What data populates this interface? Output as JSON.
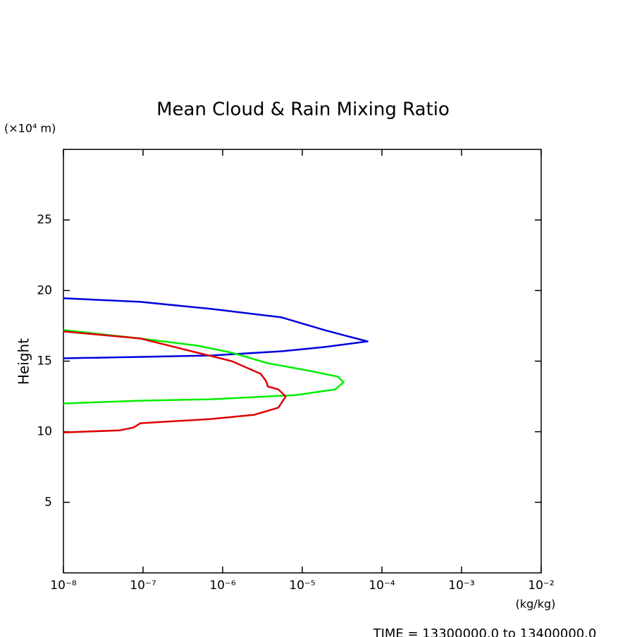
{
  "chart_data": {
    "type": "line",
    "title": "Mean Cloud & Rain Mixing Ratio",
    "xlabel": "(kg/kg)",
    "ylabel": "Height",
    "yunit": "(×10⁴ m)",
    "footer": "TIME = 13300000.0 to 13400000.0",
    "xscale": "log",
    "xlim": [
      1e-08,
      0.01
    ],
    "ylim": [
      0,
      30
    ],
    "xticks": [
      {
        "value": 1e-08,
        "label": "10⁻⁸"
      },
      {
        "value": 1e-07,
        "label": "10⁻⁷"
      },
      {
        "value": 1e-06,
        "label": "10⁻⁶"
      },
      {
        "value": 1e-05,
        "label": "10⁻⁵"
      },
      {
        "value": 0.0001,
        "label": "10⁻⁴"
      },
      {
        "value": 0.001,
        "label": "10⁻³"
      },
      {
        "value": 0.01,
        "label": "10⁻²"
      }
    ],
    "yticks": [
      5,
      10,
      15,
      20,
      25
    ],
    "series": [
      {
        "color": "#0000dd",
        "x": [
          1e-08,
          9.3e-08,
          7.2e-07,
          5.5e-06,
          1.9e-05,
          3.5e-05,
          6.6e-05,
          1.9e-05,
          5.5e-06,
          7.2e-07,
          9.3e-08,
          1e-08
        ],
        "y": [
          19.46,
          19.2,
          18.7,
          18.1,
          17.2,
          16.8,
          16.4,
          16.0,
          15.7,
          15.4,
          15.3,
          15.2
        ]
      },
      {
        "color": "#00ee00",
        "x": [
          1e-08,
          9.3e-08,
          4.8e-07,
          1.3e-06,
          3.7e-06,
          1.26e-05,
          2.8e-05,
          3.3e-05,
          2.6e-05,
          8.3e-06,
          7.2e-07,
          9.3e-08,
          1e-08
        ],
        "y": [
          17.2,
          16.6,
          16.1,
          15.6,
          14.85,
          14.3,
          13.9,
          13.5,
          13.0,
          12.6,
          12.3,
          12.2,
          12.0
        ]
      },
      {
        "color": "#dd0000",
        "x": [
          1e-08,
          9.3e-08,
          4.8e-07,
          1.3e-06,
          3e-06,
          3.5e-06,
          3.7e-06,
          5e-06,
          6.2e-06,
          5e-06,
          2.5e-06,
          7.2e-07,
          9.3e-08,
          7.6e-08,
          5.1e-08,
          1e-08
        ],
        "y": [
          17.1,
          16.6,
          15.6,
          15.0,
          14.1,
          13.6,
          13.2,
          13.0,
          12.5,
          11.7,
          11.2,
          10.9,
          10.6,
          10.3,
          10.1,
          9.95
        ]
      }
    ]
  }
}
